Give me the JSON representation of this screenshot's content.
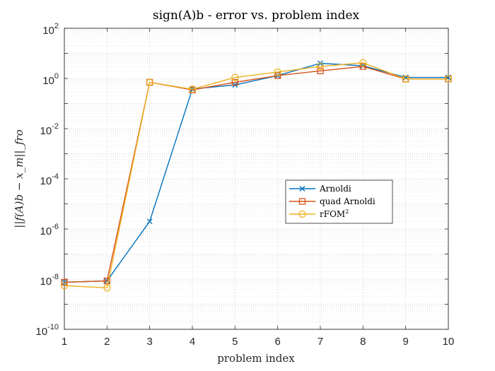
{
  "chart_data": {
    "type": "line",
    "title": "sign(A)b - error vs. problem index",
    "xlabel": "problem index",
    "ylabel": "||f(A)b − x_m||_fro",
    "x": [
      1,
      2,
      3,
      4,
      5,
      6,
      7,
      8,
      9,
      10
    ],
    "xlim": [
      1,
      10
    ],
    "ylim": [
      1e-10,
      100
    ],
    "yscale": "log",
    "grid": true,
    "legend_position": "center-right",
    "xticks": [
      "1",
      "2",
      "3",
      "4",
      "5",
      "6",
      "7",
      "8",
      "9",
      "10"
    ],
    "yticks": [
      {
        "base": "10",
        "exp": "-10"
      },
      {
        "base": "10",
        "exp": "-8"
      },
      {
        "base": "10",
        "exp": "-6"
      },
      {
        "base": "10",
        "exp": "-4"
      },
      {
        "base": "10",
        "exp": "-2"
      },
      {
        "base": "10",
        "exp": "0"
      },
      {
        "base": "10",
        "exp": "2"
      }
    ],
    "series": [
      {
        "name": "Arnoldi",
        "color": "#0072BD",
        "marker": "x",
        "values": [
          7.5e-09,
          8.5e-09,
          2e-06,
          0.38,
          0.55,
          1.3,
          4.0,
          3.2,
          1.1,
          1.1
        ]
      },
      {
        "name": "quad Arnoldi",
        "color": "#D95319",
        "marker": "square",
        "values": [
          7.5e-09,
          8.5e-09,
          0.7,
          0.35,
          0.7,
          1.3,
          2.0,
          3.0,
          0.95,
          0.95
        ]
      },
      {
        "name": "rFOM",
        "name_sup": "2",
        "color": "#EDB120",
        "marker": "circle",
        "values": [
          5.5e-09,
          4.5e-09,
          0.7,
          0.37,
          1.1,
          1.8,
          3.0,
          4.2,
          0.95,
          0.95
        ]
      }
    ]
  }
}
